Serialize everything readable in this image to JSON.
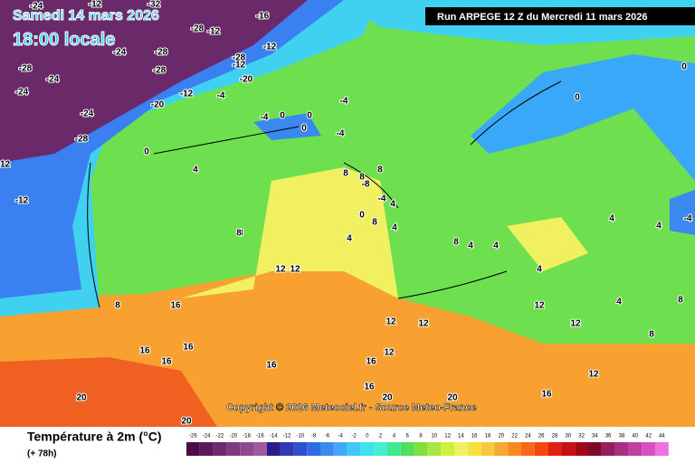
{
  "header": {
    "date": "Samedi 14 mars 2026",
    "time": "18:00 locale",
    "run": "Run ARPEGE 12 Z du Mercredi 11 mars 2026"
  },
  "copyright": "Copyright © 2026 Meteociel.fr - Source Meteo-France",
  "legend": {
    "title": "Température à 2m (°C)",
    "subtitle": "(+ 78h)",
    "scale": [
      -26,
      -24,
      -22,
      -20,
      -18,
      -16,
      -14,
      -12,
      -10,
      -8,
      -6,
      -4,
      -2,
      0,
      2,
      4,
      6,
      8,
      10,
      12,
      14,
      16,
      18,
      20,
      22,
      24,
      26,
      28,
      30,
      32,
      34,
      36,
      38,
      40,
      42,
      44
    ],
    "colors": [
      "#4b0b4b",
      "#5c1a5c",
      "#6e2a6e",
      "#803a80",
      "#8f4a8f",
      "#9e5a9e",
      "#2a1a8a",
      "#2e3ab0",
      "#3050d0",
      "#2f6ae8",
      "#3a88f0",
      "#40a8f8",
      "#40c8f8",
      "#40e0f0",
      "#40f0d0",
      "#40e890",
      "#50e060",
      "#80e040",
      "#a8e840",
      "#d0f040",
      "#f0f060",
      "#f8e040",
      "#f8c840",
      "#f8a830",
      "#f88820",
      "#f86818",
      "#f04810",
      "#e02010",
      "#c81010",
      "#a00818",
      "#800828",
      "#902060",
      "#a83080",
      "#c040a0",
      "#d850c0",
      "#f070e0"
    ]
  },
  "map_labels": [
    -24,
    -12,
    -32,
    -28,
    -16,
    -24,
    -28,
    -28,
    -24,
    -28,
    -12,
    -20,
    -24,
    -24,
    -28,
    -20,
    -12,
    -4,
    -12,
    0,
    -4,
    0,
    -4,
    -12,
    -28,
    -12,
    -12,
    4,
    0,
    -4,
    0,
    0,
    0,
    -8,
    -4,
    0,
    4,
    8,
    8,
    8,
    4,
    8,
    8,
    4,
    8,
    4,
    4,
    4,
    12,
    12,
    8,
    12,
    12,
    16,
    16,
    16,
    16,
    16,
    20,
    20,
    12,
    16,
    12,
    12,
    20,
    20,
    16,
    16,
    12,
    8,
    8,
    4,
    4,
    4,
    -4,
    8
  ]
}
